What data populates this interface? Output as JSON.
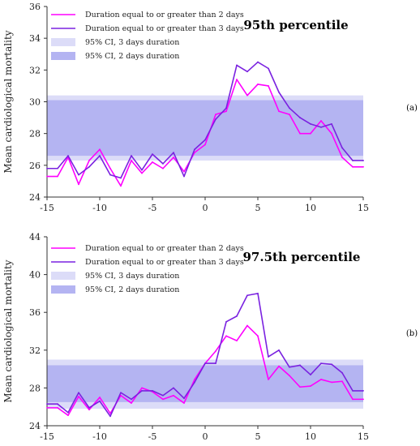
{
  "chart_data": [
    {
      "type": "line",
      "panel_label": "(a)",
      "title": "95th percentile",
      "ylabel": "Mean cardiological mortality",
      "xlim": [
        -15,
        15
      ],
      "ylim": [
        24,
        36
      ],
      "x_ticks": [
        "-15",
        "-10",
        "-5",
        "0",
        "5",
        "10",
        "15"
      ],
      "y_ticks": [
        "24",
        "26",
        "28",
        "30",
        "32",
        "34",
        "36"
      ],
      "x": [
        -15,
        -14,
        -13,
        -12,
        -11,
        -10,
        -9,
        -8,
        -7,
        -6,
        -5,
        -4,
        -3,
        -2,
        -1,
        0,
        1,
        2,
        3,
        4,
        5,
        6,
        7,
        8,
        9,
        10,
        11,
        12,
        13,
        14,
        15
      ],
      "bands": [
        {
          "name": "95% CI, 3 days duration",
          "color": "#dcdcf8",
          "range": [
            26.3,
            30.4
          ]
        },
        {
          "name": "95% CI, 2 days duration",
          "color": "#b4b4f2",
          "range": [
            26.6,
            30.1
          ]
        }
      ],
      "series": [
        {
          "name": "Duration equal to or greater than 2 days",
          "color": "#ff00ff",
          "values": [
            25.3,
            25.3,
            26.5,
            24.8,
            26.3,
            27.0,
            25.8,
            24.7,
            26.3,
            25.5,
            26.2,
            25.8,
            26.5,
            25.6,
            26.8,
            27.3,
            29.2,
            29.4,
            31.4,
            30.4,
            31.1,
            31.0,
            29.4,
            29.2,
            28.0,
            28.0,
            28.8,
            28.0,
            26.5,
            25.9,
            25.9
          ]
        },
        {
          "name": "Duration equal to or greater than 3 days",
          "color": "#7a22e0",
          "values": [
            25.8,
            25.8,
            26.6,
            25.4,
            25.9,
            26.6,
            25.4,
            25.2,
            26.6,
            25.7,
            26.7,
            26.1,
            26.8,
            25.3,
            27.0,
            27.6,
            28.9,
            29.6,
            32.3,
            31.9,
            32.5,
            32.1,
            30.6,
            29.6,
            29.0,
            28.6,
            28.4,
            28.6,
            27.1,
            26.3,
            26.3
          ]
        }
      ]
    },
    {
      "type": "line",
      "panel_label": "(b)",
      "title": "97.5th percentile",
      "ylabel": "Mean cardiological mortality",
      "xlim": [
        -15,
        15
      ],
      "ylim": [
        24,
        44
      ],
      "x_ticks": [
        "-15",
        "-10",
        "-5",
        "0",
        "5",
        "10",
        "15"
      ],
      "y_ticks": [
        "24",
        "28",
        "32",
        "36",
        "40",
        "44"
      ],
      "x": [
        -15,
        -14,
        -13,
        -12,
        -11,
        -10,
        -9,
        -8,
        -7,
        -6,
        -5,
        -4,
        -3,
        -2,
        -1,
        0,
        1,
        2,
        3,
        4,
        5,
        6,
        7,
        8,
        9,
        10,
        11,
        12,
        13,
        14,
        15
      ],
      "bands": [
        {
          "name": "95% CI, 3 days duration",
          "color": "#dcdcf8",
          "range": [
            25.8,
            31.0
          ]
        },
        {
          "name": "95% CI, 2 days duration",
          "color": "#b4b4f2",
          "range": [
            26.5,
            30.4
          ]
        }
      ],
      "series": [
        {
          "name": "Duration equal to or greater than 2 days",
          "color": "#ff00ff",
          "values": [
            25.9,
            25.9,
            25.1,
            27.1,
            25.7,
            27.0,
            25.3,
            27.2,
            26.4,
            28.0,
            27.6,
            26.8,
            27.2,
            26.4,
            28.9,
            30.6,
            31.9,
            33.5,
            33.0,
            34.6,
            33.5,
            28.9,
            30.3,
            29.3,
            28.1,
            28.2,
            28.9,
            28.6,
            28.7,
            26.8,
            26.8
          ]
        },
        {
          "name": "Duration equal to or greater than 3 days",
          "color": "#7a22e0",
          "values": [
            26.3,
            26.3,
            25.4,
            27.5,
            25.9,
            26.6,
            25.0,
            27.5,
            26.8,
            27.7,
            27.7,
            27.2,
            28.0,
            26.9,
            28.6,
            30.6,
            30.6,
            35.0,
            35.6,
            37.8,
            38.0,
            31.3,
            32.0,
            30.2,
            30.4,
            29.4,
            30.6,
            30.5,
            29.6,
            27.7,
            27.7
          ]
        }
      ]
    }
  ]
}
